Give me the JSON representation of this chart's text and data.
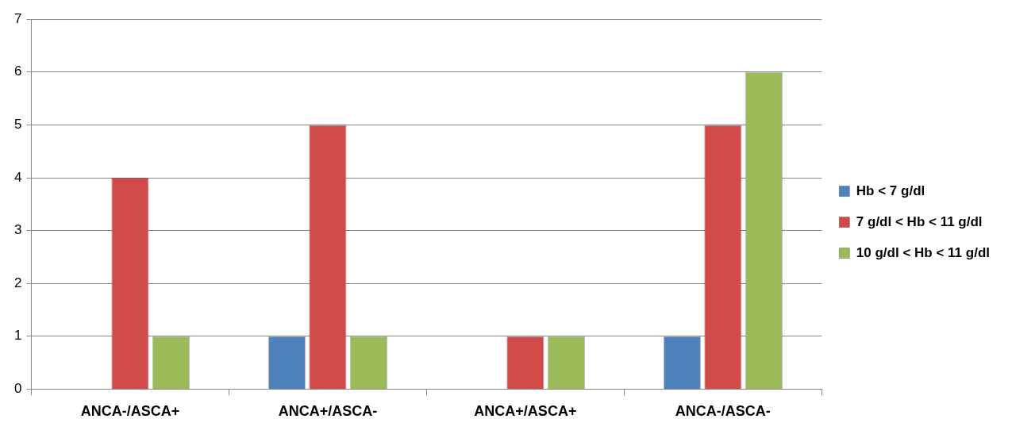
{
  "chart_data": {
    "type": "bar",
    "categories": [
      "ANCA-/ASCA+",
      "ANCA+/ASCA-",
      "ANCA+/ASCA+",
      "ANCA-/ASCA-"
    ],
    "series": [
      {
        "name": "Hb < 7 g/dl",
        "color": "#4f81bd",
        "values": [
          0,
          1,
          0,
          1
        ]
      },
      {
        "name": "7 g/dl < Hb < 11 g/dl",
        "color": "#d04a4a",
        "values": [
          4,
          5,
          1,
          5
        ]
      },
      {
        "name": "10 g/dl < Hb < 11 g/dl",
        "color": "#9bbb59",
        "values": [
          1,
          1,
          1,
          6
        ]
      }
    ],
    "ylim": [
      0,
      7
    ],
    "yticks": [
      0,
      1,
      2,
      3,
      4,
      5,
      6,
      7
    ],
    "grid": "y",
    "legend": "right"
  }
}
